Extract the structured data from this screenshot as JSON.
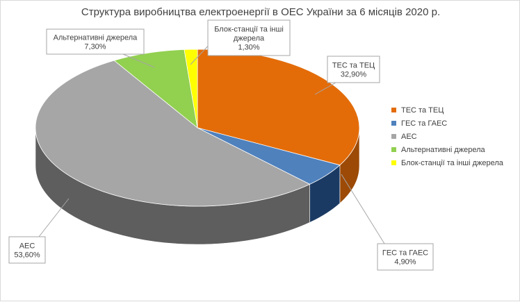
{
  "chart_data": {
    "type": "pie",
    "title": "Структура виробництва електроенергії в ОЕС України за 6 місяців 2020 р.",
    "categories": [
      "ТЕС та ТЕЦ",
      "ГЕС та ГАЕС",
      "АЕС",
      "Альтернативні джерела",
      "Блок-станції та інші джерела"
    ],
    "values": [
      32.9,
      4.9,
      53.6,
      7.3,
      1.3
    ],
    "data_labels": [
      "32,90%",
      "4,90%",
      "53,60%",
      "7,30%",
      "1,30%"
    ],
    "label_lines": [
      [
        "ТЕС та ТЕЦ",
        "32,90%"
      ],
      [
        "ГЕС та ГАЕС",
        "4,90%"
      ],
      [
        "АЕС",
        "53,60%"
      ],
      [
        "Альтернативні джерела",
        "7,30%"
      ],
      [
        "Блок-станції та інші",
        "джерела",
        "1,30%"
      ]
    ],
    "colors": [
      "#e36c09",
      "#4f81bd",
      "#a6a6a6",
      "#92d050",
      "#ffff00"
    ],
    "side_colors": [
      "#9c4a06",
      "#1b3a63",
      "#5e5e5e",
      "#5b8a2c",
      "#b3b300"
    ],
    "legend": {
      "position": "right",
      "items": [
        "ТЕС та ТЕЦ",
        "ГЕС та ГАЕС",
        "АЕС",
        "Альтернативні джерела",
        "Блок-станції та інші джерела"
      ]
    },
    "style": "3d"
  }
}
